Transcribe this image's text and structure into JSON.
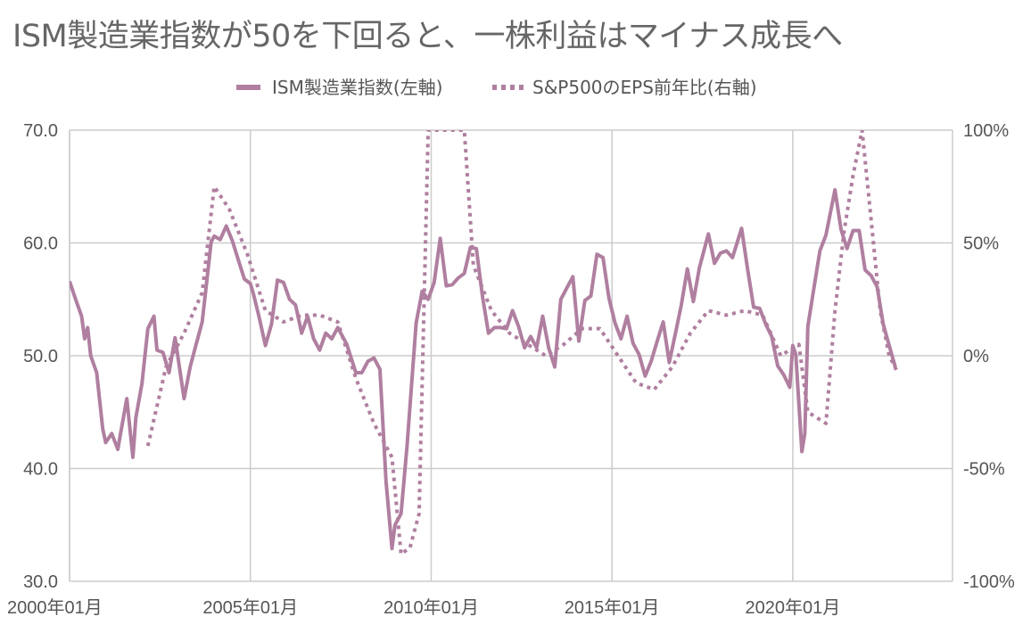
{
  "chart_data": {
    "type": "line",
    "title": "ISM製造業指数が50を下回ると、一株利益はマイナス成長へ",
    "colors": {
      "series": "#b07fa0",
      "grid": "#cccccc",
      "text": "#555555",
      "title": "#666666"
    },
    "legend": {
      "placement": "top"
    },
    "grid": true,
    "x_axis": {
      "type": "date",
      "range": [
        "2000-01",
        "2024-06"
      ],
      "tick_labels": [
        "2000年01月",
        "2005年01月",
        "2010年01月",
        "2015年01月",
        "2020年01月"
      ],
      "tick_dates": [
        "2000-01",
        "2005-01",
        "2010-01",
        "2015-01",
        "2020-01"
      ]
    },
    "y_left": {
      "range": [
        30,
        70
      ],
      "ticks": [
        30,
        40,
        50,
        60,
        70
      ],
      "tick_labels": [
        "30.0",
        "40.0",
        "50.0",
        "60.0",
        "70.0"
      ]
    },
    "y_right": {
      "range": [
        -100,
        100
      ],
      "ticks": [
        -100,
        -50,
        0,
        50,
        100
      ],
      "tick_labels": [
        "-100%",
        "-50%",
        "0%",
        "50%",
        "100%"
      ]
    },
    "series": [
      {
        "name": "ISM製造業指数(左軸)",
        "axis": "left",
        "style": "solid",
        "points": [
          [
            "2000-01",
            56.6
          ],
          [
            "2000-03",
            55.0
          ],
          [
            "2000-05",
            53.5
          ],
          [
            "2000-06",
            51.5
          ],
          [
            "2000-07",
            52.5
          ],
          [
            "2000-08",
            50.0
          ],
          [
            "2000-10",
            48.5
          ],
          [
            "2000-12",
            43.5
          ],
          [
            "2001-01",
            42.3
          ],
          [
            "2001-03",
            43.1
          ],
          [
            "2001-05",
            41.7
          ],
          [
            "2001-06",
            43.2
          ],
          [
            "2001-08",
            46.2
          ],
          [
            "2001-10",
            41.0
          ],
          [
            "2001-11",
            44.5
          ],
          [
            "2002-01",
            47.5
          ],
          [
            "2002-03",
            52.4
          ],
          [
            "2002-05",
            53.5
          ],
          [
            "2002-06",
            50.5
          ],
          [
            "2002-08",
            50.3
          ],
          [
            "2002-10",
            48.5
          ],
          [
            "2002-12",
            51.6
          ],
          [
            "2003-03",
            46.2
          ],
          [
            "2003-05",
            49.0
          ],
          [
            "2003-07",
            51.0
          ],
          [
            "2003-09",
            53.0
          ],
          [
            "2003-12",
            60.1
          ],
          [
            "2004-01",
            60.6
          ],
          [
            "2004-03",
            60.3
          ],
          [
            "2004-05",
            61.5
          ],
          [
            "2004-07",
            60.2
          ],
          [
            "2004-09",
            58.5
          ],
          [
            "2004-11",
            56.8
          ],
          [
            "2005-01",
            56.4
          ],
          [
            "2005-02",
            55.5
          ],
          [
            "2005-04",
            53.3
          ],
          [
            "2005-06",
            50.9
          ],
          [
            "2005-08",
            52.8
          ],
          [
            "2005-10",
            56.7
          ],
          [
            "2005-12",
            56.5
          ],
          [
            "2006-02",
            55.0
          ],
          [
            "2006-04",
            54.5
          ],
          [
            "2006-06",
            52.0
          ],
          [
            "2006-08",
            53.5
          ],
          [
            "2006-10",
            51.5
          ],
          [
            "2006-12",
            50.5
          ],
          [
            "2007-02",
            52.0
          ],
          [
            "2007-04",
            51.5
          ],
          [
            "2007-06",
            52.5
          ],
          [
            "2007-09",
            51.0
          ],
          [
            "2007-12",
            48.5
          ],
          [
            "2008-02",
            48.5
          ],
          [
            "2008-04",
            49.5
          ],
          [
            "2008-06",
            49.8
          ],
          [
            "2008-08",
            48.8
          ],
          [
            "2008-10",
            38.9
          ],
          [
            "2008-12",
            32.9
          ],
          [
            "2009-01",
            35.0
          ],
          [
            "2009-03",
            36.0
          ],
          [
            "2009-05",
            42.0
          ],
          [
            "2009-08",
            52.9
          ],
          [
            "2009-10",
            55.7
          ],
          [
            "2009-12",
            55.0
          ],
          [
            "2010-02",
            56.5
          ],
          [
            "2010-04",
            60.4
          ],
          [
            "2010-06",
            56.2
          ],
          [
            "2010-08",
            56.3
          ],
          [
            "2010-10",
            56.9
          ],
          [
            "2010-12",
            57.3
          ],
          [
            "2011-02",
            59.6
          ],
          [
            "2011-04",
            59.5
          ],
          [
            "2011-06",
            55.3
          ],
          [
            "2011-08",
            52.0
          ],
          [
            "2011-10",
            52.5
          ],
          [
            "2011-12",
            52.5
          ],
          [
            "2012-02",
            52.4
          ],
          [
            "2012-04",
            54.0
          ],
          [
            "2012-06",
            52.6
          ],
          [
            "2012-08",
            50.7
          ],
          [
            "2012-10",
            51.7
          ],
          [
            "2012-12",
            50.7
          ],
          [
            "2013-02",
            53.5
          ],
          [
            "2013-04",
            50.7
          ],
          [
            "2013-06",
            49.0
          ],
          [
            "2013-08",
            55.0
          ],
          [
            "2013-10",
            56.0
          ],
          [
            "2013-12",
            57.0
          ],
          [
            "2014-02",
            51.3
          ],
          [
            "2014-04",
            54.9
          ],
          [
            "2014-06",
            55.3
          ],
          [
            "2014-08",
            59.0
          ],
          [
            "2014-10",
            58.7
          ],
          [
            "2014-12",
            55.1
          ],
          [
            "2015-02",
            52.9
          ],
          [
            "2015-04",
            51.5
          ],
          [
            "2015-06",
            53.5
          ],
          [
            "2015-08",
            51.1
          ],
          [
            "2015-10",
            50.1
          ],
          [
            "2015-12",
            48.2
          ],
          [
            "2016-02",
            49.5
          ],
          [
            "2016-04",
            51.3
          ],
          [
            "2016-06",
            53.0
          ],
          [
            "2016-08",
            49.4
          ],
          [
            "2016-10",
            51.9
          ],
          [
            "2016-12",
            54.5
          ],
          [
            "2017-02",
            57.7
          ],
          [
            "2017-04",
            54.8
          ],
          [
            "2017-06",
            57.8
          ],
          [
            "2017-09",
            60.8
          ],
          [
            "2017-11",
            58.2
          ],
          [
            "2018-01",
            59.1
          ],
          [
            "2018-03",
            59.3
          ],
          [
            "2018-05",
            58.7
          ],
          [
            "2018-08",
            61.3
          ],
          [
            "2018-10",
            57.7
          ],
          [
            "2018-12",
            54.3
          ],
          [
            "2019-02",
            54.2
          ],
          [
            "2019-04",
            52.8
          ],
          [
            "2019-06",
            51.7
          ],
          [
            "2019-08",
            49.1
          ],
          [
            "2019-10",
            48.3
          ],
          [
            "2019-12",
            47.2
          ],
          [
            "2020-01",
            50.9
          ],
          [
            "2020-02",
            50.1
          ],
          [
            "2020-04",
            41.5
          ],
          [
            "2020-05",
            43.1
          ],
          [
            "2020-06",
            52.6
          ],
          [
            "2020-08",
            56.0
          ],
          [
            "2020-10",
            59.3
          ],
          [
            "2020-12",
            60.7
          ],
          [
            "2021-03",
            64.7
          ],
          [
            "2021-05",
            61.2
          ],
          [
            "2021-07",
            59.5
          ],
          [
            "2021-09",
            61.1
          ],
          [
            "2021-11",
            61.1
          ],
          [
            "2022-01",
            57.6
          ],
          [
            "2022-03",
            57.1
          ],
          [
            "2022-05",
            56.1
          ],
          [
            "2022-07",
            52.8
          ],
          [
            "2022-09",
            50.9
          ],
          [
            "2022-11",
            49.0
          ]
        ]
      },
      {
        "name": "S&P500のEPS前年比(右軸)",
        "axis": "right",
        "style": "dotted",
        "points": [
          [
            "2002-03",
            -40
          ],
          [
            "2002-09",
            -5
          ],
          [
            "2003-03",
            10
          ],
          [
            "2003-09",
            28
          ],
          [
            "2004-01",
            75
          ],
          [
            "2004-06",
            65
          ],
          [
            "2004-12",
            45
          ],
          [
            "2005-06",
            20
          ],
          [
            "2005-12",
            15
          ],
          [
            "2006-06",
            18
          ],
          [
            "2006-12",
            18
          ],
          [
            "2007-06",
            15
          ],
          [
            "2007-12",
            -10
          ],
          [
            "2008-06",
            -30
          ],
          [
            "2008-12",
            -45
          ],
          [
            "2009-03",
            -88
          ],
          [
            "2009-06",
            -85
          ],
          [
            "2009-09",
            -70
          ],
          [
            "2009-12",
            100
          ],
          [
            "2010-03",
            100
          ],
          [
            "2010-06",
            100
          ],
          [
            "2010-12",
            100
          ],
          [
            "2011-03",
            40
          ],
          [
            "2011-09",
            20
          ],
          [
            "2012-03",
            10
          ],
          [
            "2012-09",
            5
          ],
          [
            "2013-03",
            0
          ],
          [
            "2013-09",
            5
          ],
          [
            "2014-03",
            12
          ],
          [
            "2014-09",
            12
          ],
          [
            "2015-03",
            0
          ],
          [
            "2015-09",
            -12
          ],
          [
            "2016-03",
            -15
          ],
          [
            "2016-09",
            -5
          ],
          [
            "2017-03",
            10
          ],
          [
            "2017-09",
            20
          ],
          [
            "2018-03",
            18
          ],
          [
            "2018-09",
            20
          ],
          [
            "2019-03",
            18
          ],
          [
            "2019-09",
            0
          ],
          [
            "2020-03",
            5
          ],
          [
            "2020-06",
            -25
          ],
          [
            "2020-12",
            -30
          ],
          [
            "2021-03",
            20
          ],
          [
            "2021-06",
            55
          ],
          [
            "2021-09",
            80
          ],
          [
            "2021-12",
            100
          ],
          [
            "2022-03",
            60
          ],
          [
            "2022-06",
            20
          ],
          [
            "2022-09",
            0
          ],
          [
            "2022-12",
            -8
          ]
        ]
      }
    ]
  }
}
